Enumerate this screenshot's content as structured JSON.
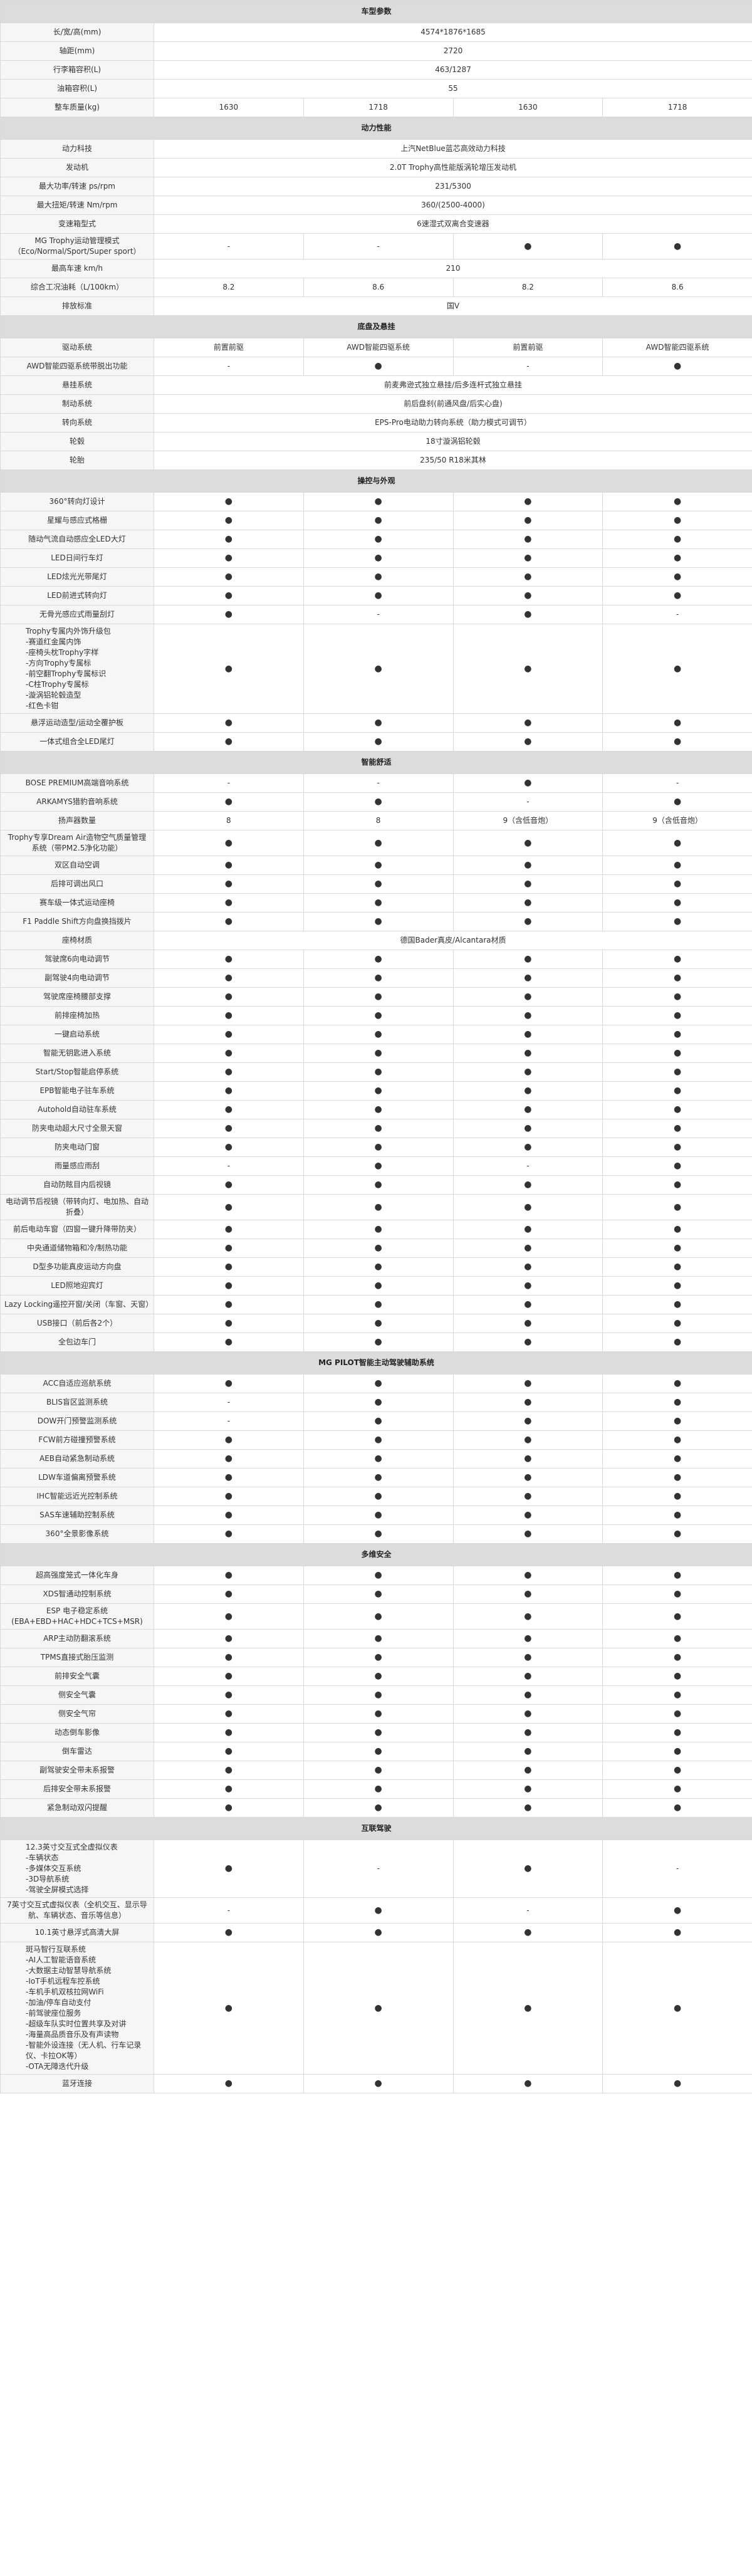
{
  "page": {
    "title": "车型参数"
  },
  "rows": [
    {
      "label": "长/宽/高(mm)",
      "vals": [
        "4574*1876*1685"
      ]
    },
    {
      "label": "轴距(mm)",
      "vals": [
        "2720"
      ]
    },
    {
      "label": "行李箱容积(L)",
      "vals": [
        "463/1287"
      ]
    },
    {
      "label": "油箱容积(L)",
      "vals": [
        "55"
      ]
    },
    {
      "label": "整车质量(kg)",
      "vals": [
        "1630",
        "1718",
        "1630",
        "1718"
      ]
    },
    {
      "section": "动力性能"
    },
    {
      "label": "动力科技",
      "vals": [
        "上汽NetBlue蓝芯高效动力科技"
      ]
    },
    {
      "label": "发动机",
      "vals": [
        "2.0T Trophy高性能版涡轮增压发动机"
      ]
    },
    {
      "label": "最大功率/转速 ps/rpm",
      "vals": [
        "231/5300"
      ]
    },
    {
      "label": "最大扭矩/转速 Nm/rpm",
      "vals": [
        "360/(2500-4000)"
      ]
    },
    {
      "label": "变速箱型式",
      "vals": [
        "6速湿式双离合变速器"
      ]
    },
    {
      "label": "MG Trophy运动管理模式\n（Eco/Normal/Sport/Super sport）",
      "vals": [
        "-",
        "-",
        "●",
        "●"
      ]
    },
    {
      "label": "最高车速 km/h",
      "vals": [
        "210"
      ]
    },
    {
      "label": "综合工况油耗（L/100km）",
      "vals": [
        "8.2",
        "8.6",
        "8.2",
        "8.6"
      ]
    },
    {
      "label": "排放标准",
      "vals": [
        "国V"
      ]
    },
    {
      "section": "底盘及悬挂"
    },
    {
      "label": "驱动系统",
      "vals": [
        "前置前驱",
        "AWD智能四驱系统",
        "前置前驱",
        "AWD智能四驱系统"
      ]
    },
    {
      "label": "AWD智能四驱系统带脱出功能",
      "vals": [
        "-",
        "●",
        "-",
        "●"
      ]
    },
    {
      "label": "悬挂系统",
      "vals": [
        "前麦弗逊式独立悬挂/后多连杆式独立悬挂"
      ]
    },
    {
      "label": "制动系统",
      "vals": [
        "前后盘刹(前通风盘/后实心盘)"
      ]
    },
    {
      "label": "转向系统",
      "vals": [
        "EPS-Pro电动助力转向系统（助力模式可调节）"
      ]
    },
    {
      "label": "轮毂",
      "vals": [
        "18寸漩涡铝轮毂"
      ]
    },
    {
      "label": "轮胎",
      "vals": [
        "235/50 R18米其林"
      ]
    },
    {
      "section": "操控与外观"
    },
    {
      "label": "360°转向灯设计",
      "vals": [
        "●",
        "●",
        "●",
        "●"
      ]
    },
    {
      "label": "星耀与感应式格栅",
      "vals": [
        "●",
        "●",
        "●",
        "●"
      ]
    },
    {
      "label": "随动气流自动感应全LED大灯",
      "vals": [
        "●",
        "●",
        "●",
        "●"
      ]
    },
    {
      "label": "LED日间行车灯",
      "vals": [
        "●",
        "●",
        "●",
        "●"
      ]
    },
    {
      "label": "LED炫光光带尾灯",
      "vals": [
        "●",
        "●",
        "●",
        "●"
      ]
    },
    {
      "label": "LED前进式转向灯",
      "vals": [
        "●",
        "●",
        "●",
        "●"
      ]
    },
    {
      "label": "无骨光感应式雨量刮灯",
      "vals": [
        "●",
        "-",
        "●",
        "-"
      ]
    },
    {
      "label": "Trophy专属内外饰升级包\n-赛道红金属内饰\n-座椅头枕Trophy字样\n-方向Trophy专属标\n-前空翻Trophy专属标识\n-C柱Trophy专属标\n-漩涡铝轮毂造型\n-红色卡钳",
      "vals": [
        "●",
        "●",
        "●",
        "●"
      ],
      "tall": true,
      "multi": true
    },
    {
      "label": "悬浮运动造型/运动全覆护板",
      "vals": [
        "●",
        "●",
        "●",
        "●"
      ]
    },
    {
      "label": "一体式组合全LED尾灯",
      "vals": [
        "●",
        "●",
        "●",
        "●"
      ]
    },
    {
      "section": "智能舒适"
    },
    {
      "label": "BOSE PREMIUM高端音响系统",
      "vals": [
        "-",
        "-",
        "●",
        "-"
      ]
    },
    {
      "label": "ARKAMYS猎豹音响系统",
      "vals": [
        "●",
        "●",
        "-",
        "●"
      ]
    },
    {
      "label": "扬声器数量",
      "vals": [
        "8",
        "8",
        "9（含低音炮）",
        "9（含低音炮）"
      ]
    },
    {
      "label": "Trophy专享Dream Air造物空气质量管理系统（带PM2.5净化功能）",
      "vals": [
        "●",
        "●",
        "●",
        "●"
      ],
      "tall": true
    },
    {
      "label": "双区自动空调",
      "vals": [
        "●",
        "●",
        "●",
        "●"
      ]
    },
    {
      "label": "后排可调出风口",
      "vals": [
        "●",
        "●",
        "●",
        "●"
      ]
    },
    {
      "label": "赛车级一体式运动座椅",
      "vals": [
        "●",
        "●",
        "●",
        "●"
      ]
    },
    {
      "label": "F1 Paddle Shift方向盘换挡拨片",
      "vals": [
        "●",
        "●",
        "●",
        "●"
      ]
    },
    {
      "label": "座椅材质",
      "vals": [
        "德国Bader真皮/Alcantara材质"
      ]
    },
    {
      "label": "驾驶席6向电动调节",
      "vals": [
        "●",
        "●",
        "●",
        "●"
      ]
    },
    {
      "label": "副驾驶4向电动调节",
      "vals": [
        "●",
        "●",
        "●",
        "●"
      ]
    },
    {
      "label": "驾驶席座椅腰部支撑",
      "vals": [
        "●",
        "●",
        "●",
        "●"
      ]
    },
    {
      "label": "前排座椅加热",
      "vals": [
        "●",
        "●",
        "●",
        "●"
      ]
    },
    {
      "label": "一键启动系统",
      "vals": [
        "●",
        "●",
        "●",
        "●"
      ]
    },
    {
      "label": "智能无钥匙进入系统",
      "vals": [
        "●",
        "●",
        "●",
        "●"
      ]
    },
    {
      "label": "Start/Stop智能启停系统",
      "vals": [
        "●",
        "●",
        "●",
        "●"
      ]
    },
    {
      "label": "EPB智能电子驻车系统",
      "vals": [
        "●",
        "●",
        "●",
        "●"
      ]
    },
    {
      "label": "Autohold自动驻车系统",
      "vals": [
        "●",
        "●",
        "●",
        "●"
      ]
    },
    {
      "label": "防夹电动超大尺寸全景天窗",
      "vals": [
        "●",
        "●",
        "●",
        "●"
      ]
    },
    {
      "label": "防夹电动门窗",
      "vals": [
        "●",
        "●",
        "●",
        "●"
      ]
    },
    {
      "label": "雨量感应雨刮",
      "vals": [
        "-",
        "●",
        "-",
        "●"
      ]
    },
    {
      "label": "自动防眩目内后视镜",
      "vals": [
        "●",
        "●",
        "●",
        "●"
      ]
    },
    {
      "label": "电动调节后视镜（带转向灯、电加热、自动折叠）",
      "vals": [
        "●",
        "●",
        "●",
        "●"
      ],
      "tall": true
    },
    {
      "label": "前后电动车窗（四窗一键升降带防夹）",
      "vals": [
        "●",
        "●",
        "●",
        "●"
      ]
    },
    {
      "label": "中央通道储物箱和冷/制热功能",
      "vals": [
        "●",
        "●",
        "●",
        "●"
      ]
    },
    {
      "label": "D型多功能真皮运动方向盘",
      "vals": [
        "●",
        "●",
        "●",
        "●"
      ]
    },
    {
      "label": "LED照地迎宾灯",
      "vals": [
        "●",
        "●",
        "●",
        "●"
      ]
    },
    {
      "label": "Lazy Locking遥控开窗/关闭（车窗、天窗）",
      "vals": [
        "●",
        "●",
        "●",
        "●"
      ],
      "tall": true
    },
    {
      "label": "USB接口（前后各2个）",
      "vals": [
        "●",
        "●",
        "●",
        "●"
      ]
    },
    {
      "label": "全包边车门",
      "vals": [
        "●",
        "●",
        "●",
        "●"
      ]
    },
    {
      "section": "MG PILOT智能主动驾驶辅助系统"
    },
    {
      "label": "ACC自适应巡航系统",
      "vals": [
        "●",
        "●",
        "●",
        "●"
      ]
    },
    {
      "label": "BLIS盲区监测系统",
      "vals": [
        "-",
        "●",
        "●",
        "●"
      ]
    },
    {
      "label": "DOW开门预警监测系统",
      "vals": [
        "-",
        "●",
        "●",
        "●"
      ]
    },
    {
      "label": "FCW前方碰撞预警系统",
      "vals": [
        "●",
        "●",
        "●",
        "●"
      ]
    },
    {
      "label": "AEB自动紧急制动系统",
      "vals": [
        "●",
        "●",
        "●",
        "●"
      ]
    },
    {
      "label": "LDW车道偏离预警系统",
      "vals": [
        "●",
        "●",
        "●",
        "●"
      ]
    },
    {
      "label": "IHC智能远近光控制系统",
      "vals": [
        "●",
        "●",
        "●",
        "●"
      ]
    },
    {
      "label": "SAS车速辅助控制系统",
      "vals": [
        "●",
        "●",
        "●",
        "●"
      ]
    },
    {
      "label": "360°全景影像系统",
      "vals": [
        "●",
        "●",
        "●",
        "●"
      ]
    },
    {
      "section": "多维安全"
    },
    {
      "label": "超高强度笼式一体化车身",
      "vals": [
        "●",
        "●",
        "●",
        "●"
      ]
    },
    {
      "label": "XDS智通动控制系统",
      "vals": [
        "●",
        "●",
        "●",
        "●"
      ]
    },
    {
      "label": "ESP 电子稳定系统\n(EBA+EBD+HAC+HDC+TCS+MSR)",
      "vals": [
        "●",
        "●",
        "●",
        "●"
      ],
      "tall": true
    },
    {
      "label": "ARP主动防翻滚系统",
      "vals": [
        "●",
        "●",
        "●",
        "●"
      ]
    },
    {
      "label": "TPMS直接式胎压监测",
      "vals": [
        "●",
        "●",
        "●",
        "●"
      ]
    },
    {
      "label": "前排安全气囊",
      "vals": [
        "●",
        "●",
        "●",
        "●"
      ]
    },
    {
      "label": "侧安全气囊",
      "vals": [
        "●",
        "●",
        "●",
        "●"
      ]
    },
    {
      "label": "侧安全气帘",
      "vals": [
        "●",
        "●",
        "●",
        "●"
      ]
    },
    {
      "label": "动态倒车影像",
      "vals": [
        "●",
        "●",
        "●",
        "●"
      ]
    },
    {
      "label": "倒车雷达",
      "vals": [
        "●",
        "●",
        "●",
        "●"
      ]
    },
    {
      "label": "副驾驶安全带未系报警",
      "vals": [
        "●",
        "●",
        "●",
        "●"
      ]
    },
    {
      "label": "后排安全带未系报警",
      "vals": [
        "●",
        "●",
        "●",
        "●"
      ]
    },
    {
      "label": "紧急制动双闪提醒",
      "vals": [
        "●",
        "●",
        "●",
        "●"
      ]
    },
    {
      "section": "互联驾驶"
    },
    {
      "label": "12.3英寸交互式全虚拟仪表\n-车辆状态\n-多媒体交互系统\n-3D导航系统\n-驾驶全屏模式选择",
      "vals": [
        "●",
        "-",
        "●",
        "-"
      ],
      "tall": true,
      "multi": true
    },
    {
      "label": "7英寸交互式虚拟仪表（全机交互、显示导航、车辆状态、音乐等信息）",
      "vals": [
        "-",
        "●",
        "-",
        "●"
      ],
      "tall": true
    },
    {
      "label": "10.1英寸悬浮式高清大屏",
      "vals": [
        "●",
        "●",
        "●",
        "●"
      ]
    },
    {
      "label": "斑马智行互联系统\n-AI人工智能语音系统\n-大数据主动智慧导航系统\n-IoT手机远程车控系统\n-车机手机双核拉网WiFi\n-加油/停车自动支付\n-前驾驶座位服务\n-超级车队实时位置共享及对讲\n-海量高品质音乐及有声读物\n-智能外设连接（无人机、行车记录仪、卡拉OK等）\n-OTA无障迭代升级",
      "vals": [
        "●",
        "●",
        "●",
        "●"
      ],
      "tall": true,
      "multi": true
    },
    {
      "label": "蓝牙连接",
      "vals": [
        "●",
        "●",
        "●",
        "●"
      ]
    }
  ]
}
